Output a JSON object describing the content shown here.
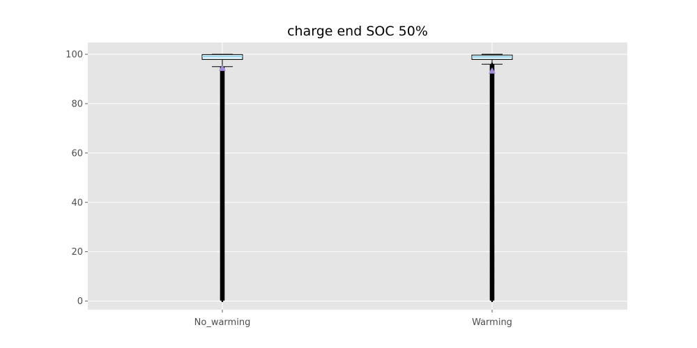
{
  "chart_data": {
    "type": "box",
    "title": "charge end SOC 50%",
    "xlabel": "",
    "ylabel": "",
    "categories": [
      "No_warming",
      "Warming"
    ],
    "ylim": [
      -3.5,
      104.8
    ],
    "yticks": [
      0,
      20,
      40,
      60,
      80,
      100
    ],
    "grid": true,
    "legend": "none",
    "boxes": [
      {
        "name": "No_warming",
        "q1": 97.9,
        "median": 99.2,
        "q3": 99.9,
        "whisker_low": 95.0,
        "whisker_high": 100,
        "mean": 94.4,
        "outliers_range": [
          0.5,
          94.8
        ]
      },
      {
        "name": "Warming",
        "q1": 97.9,
        "median": 99.0,
        "q3": 99.7,
        "whisker_low": 96.0,
        "whisker_high": 100,
        "mean": 93.3,
        "outliers_range": [
          0.5,
          95.8
        ]
      }
    ],
    "colors": {
      "background": "#e5e5e5",
      "grid": "#ffffff",
      "box_fill": "#dceef5",
      "box_edge": "#000000",
      "median": "#87ceeb",
      "mean_marker": "#a08ed6",
      "outlier": "#000000",
      "tick_text": "#4d4d4d"
    }
  }
}
